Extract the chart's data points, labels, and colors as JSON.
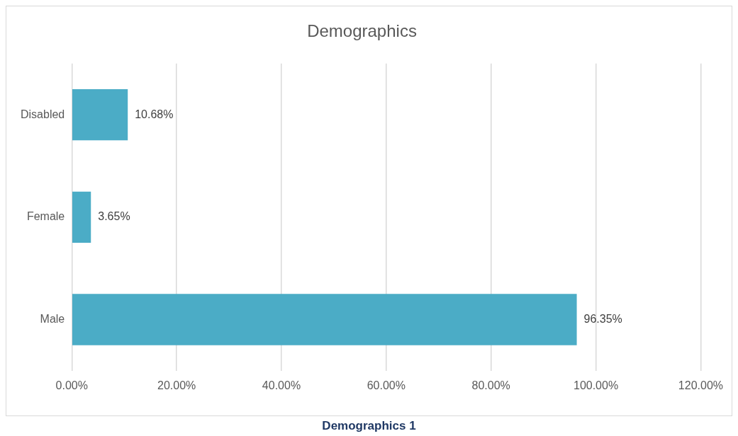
{
  "chart_data": {
    "type": "bar",
    "title": "Demographics",
    "orientation": "horizontal",
    "categories": [
      "Disabled",
      "Female",
      "Male"
    ],
    "values": [
      10.68,
      3.65,
      96.35
    ],
    "value_labels": [
      "10.68%",
      "3.65%",
      "96.35%"
    ],
    "color": "#4bacc6",
    "xlim": [
      0,
      120
    ],
    "xticks": [
      {
        "value": 0,
        "label": "0.00%"
      },
      {
        "value": 20,
        "label": "20.00%"
      },
      {
        "value": 40,
        "label": "40.00%"
      },
      {
        "value": 60,
        "label": "60.00%"
      },
      {
        "value": 80,
        "label": "80.00%"
      },
      {
        "value": 100,
        "label": "100.00%"
      },
      {
        "value": 120,
        "label": "120.00%"
      }
    ],
    "grid": "x",
    "legend": false,
    "annotations": [
      "Demographics 1"
    ]
  }
}
